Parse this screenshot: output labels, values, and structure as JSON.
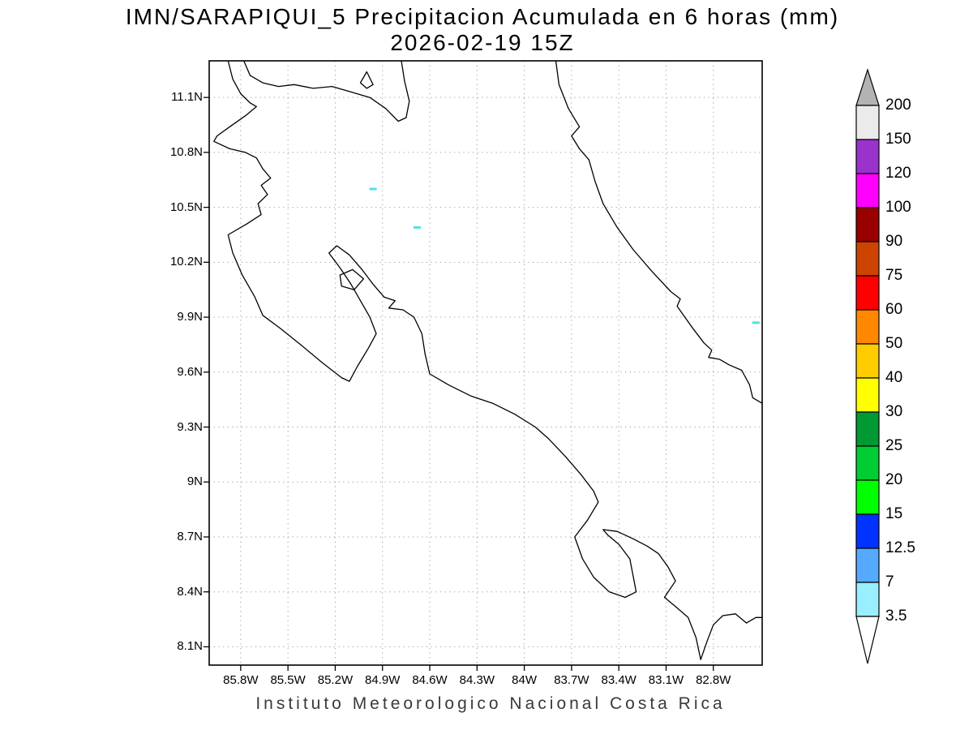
{
  "chart_data": {
    "type": "heatmap",
    "title": "IMN/SARAPIQUI_5 Precipitacion Acumulada en 6 horas (mm)",
    "subtitle": "2026-02-19 15Z",
    "caption": "Instituto Meteorologico Nacional Costa Rica",
    "units": "mm",
    "grid": true,
    "legend_position": "right",
    "lon_range_w": [
      86.0,
      82.49
    ],
    "lat_range_n": [
      8.0,
      11.3
    ],
    "x_ticks": [
      {
        "label": "85.8W",
        "lon_w": 85.8
      },
      {
        "label": "85.5W",
        "lon_w": 85.5
      },
      {
        "label": "85.2W",
        "lon_w": 85.2
      },
      {
        "label": "84.9W",
        "lon_w": 84.9
      },
      {
        "label": "84.6W",
        "lon_w": 84.6
      },
      {
        "label": "84.3W",
        "lon_w": 84.3
      },
      {
        "label": "84W",
        "lon_w": 84.0
      },
      {
        "label": "83.7W",
        "lon_w": 83.7
      },
      {
        "label": "83.4W",
        "lon_w": 83.4
      },
      {
        "label": "83.1W",
        "lon_w": 83.1
      },
      {
        "label": "82.8W",
        "lon_w": 82.8
      }
    ],
    "y_ticks": [
      {
        "label": "11.1N",
        "lat_n": 11.1
      },
      {
        "label": "10.8N",
        "lat_n": 10.8
      },
      {
        "label": "10.5N",
        "lat_n": 10.5
      },
      {
        "label": "10.2N",
        "lat_n": 10.2
      },
      {
        "label": "9.9N",
        "lat_n": 9.9
      },
      {
        "label": "9.6N",
        "lat_n": 9.6
      },
      {
        "label": "9.3N",
        "lat_n": 9.3
      },
      {
        "label": "9N",
        "lat_n": 9.0
      },
      {
        "label": "8.7N",
        "lat_n": 8.7
      },
      {
        "label": "8.4N",
        "lat_n": 8.4
      },
      {
        "label": "8.1N",
        "lat_n": 8.1
      }
    ],
    "colorbar": {
      "tick_labels_top_to_bottom": [
        "200",
        "150",
        "120",
        "100",
        "90",
        "75",
        "60",
        "50",
        "40",
        "30",
        "25",
        "20",
        "15",
        "12.5",
        "7",
        "3.5"
      ],
      "cell_colors_top_to_bottom": [
        "#ebebeb",
        "#9933cc",
        "#ff00ff",
        "#990000",
        "#cc4400",
        "#ff0000",
        "#ff8800",
        "#ffcc00",
        "#ffff00",
        "#009933",
        "#00cc33",
        "#00ff00",
        "#0033ff",
        "#55aaff",
        "#99eeff"
      ],
      "above_max_color": "#b3b3b3",
      "below_min_color": "#ffffff",
      "outline_color": "#000000"
    },
    "precip_cells": [
      {
        "lon_w": 84.96,
        "lat_n": 10.6,
        "level": "3.5-7 mm",
        "color": "#55dee6"
      },
      {
        "lon_w": 84.68,
        "lat_n": 10.39,
        "level": "3.5-7 mm",
        "color": "#55dee6"
      },
      {
        "lon_w": 82.53,
        "lat_n": 9.87,
        "level": "3.5-7 mm",
        "color": "#55dee6"
      }
    ],
    "basemap": {
      "coast_color": "#000000",
      "grid_color": "#9a9a9a",
      "coast_pacific": [
        [
          85.88,
          11.3
        ],
        [
          85.85,
          11.2
        ],
        [
          85.8,
          11.12
        ],
        [
          85.74,
          11.07
        ],
        [
          85.7,
          11.05
        ],
        [
          85.77,
          11.0
        ],
        [
          85.87,
          10.94
        ],
        [
          85.95,
          10.89
        ],
        [
          85.97,
          10.86
        ],
        [
          85.87,
          10.82
        ],
        [
          85.77,
          10.8
        ],
        [
          85.7,
          10.77
        ],
        [
          85.66,
          10.71
        ],
        [
          85.61,
          10.66
        ],
        [
          85.67,
          10.62
        ],
        [
          85.63,
          10.57
        ],
        [
          85.69,
          10.52
        ],
        [
          85.67,
          10.46
        ],
        [
          85.76,
          10.41
        ],
        [
          85.88,
          10.35
        ],
        [
          85.85,
          10.25
        ],
        [
          85.79,
          10.13
        ],
        [
          85.71,
          10.01
        ],
        [
          85.66,
          9.91
        ],
        [
          85.55,
          9.84
        ],
        [
          85.42,
          9.75
        ],
        [
          85.28,
          9.65
        ],
        [
          85.16,
          9.57
        ],
        [
          85.11,
          9.55
        ],
        [
          85.06,
          9.63
        ],
        [
          84.99,
          9.73
        ],
        [
          84.94,
          9.81
        ],
        [
          84.98,
          9.9
        ],
        [
          85.04,
          9.99
        ],
        [
          85.1,
          10.08
        ],
        [
          85.17,
          10.17
        ],
        [
          85.24,
          10.25
        ],
        [
          85.19,
          10.29
        ],
        [
          85.11,
          10.24
        ],
        [
          85.03,
          10.16
        ],
        [
          84.96,
          10.08
        ],
        [
          84.89,
          10.01
        ],
        [
          84.82,
          9.99
        ],
        [
          84.86,
          9.95
        ],
        [
          84.77,
          9.94
        ],
        [
          84.7,
          9.9
        ],
        [
          84.65,
          9.81
        ],
        [
          84.63,
          9.7
        ],
        [
          84.6,
          9.59
        ],
        [
          84.48,
          9.53
        ],
        [
          84.34,
          9.47
        ],
        [
          84.2,
          9.43
        ],
        [
          84.06,
          9.37
        ],
        [
          83.93,
          9.3
        ],
        [
          83.85,
          9.24
        ],
        [
          83.74,
          9.14
        ],
        [
          83.64,
          9.04
        ],
        [
          83.56,
          8.95
        ],
        [
          83.53,
          8.89
        ],
        [
          83.6,
          8.79
        ],
        [
          83.68,
          8.7
        ],
        [
          83.63,
          8.58
        ],
        [
          83.56,
          8.48
        ],
        [
          83.46,
          8.4
        ],
        [
          83.36,
          8.37
        ],
        [
          83.29,
          8.4
        ],
        [
          83.31,
          8.49
        ],
        [
          83.33,
          8.58
        ],
        [
          83.4,
          8.66
        ],
        [
          83.47,
          8.71
        ],
        [
          83.5,
          8.74
        ],
        [
          83.41,
          8.73
        ],
        [
          83.31,
          8.69
        ],
        [
          83.22,
          8.65
        ],
        [
          83.15,
          8.61
        ],
        [
          83.09,
          8.54
        ],
        [
          83.04,
          8.46
        ],
        [
          83.11,
          8.37
        ],
        [
          83.04,
          8.32
        ],
        [
          82.96,
          8.26
        ],
        [
          82.91,
          8.15
        ],
        [
          82.88,
          8.03
        ],
        [
          82.84,
          8.13
        ],
        [
          82.8,
          8.22
        ],
        [
          82.74,
          8.27
        ],
        [
          82.66,
          8.28
        ],
        [
          82.59,
          8.23
        ],
        [
          82.53,
          8.26
        ],
        [
          82.49,
          8.26
        ]
      ],
      "coast_caribbean": [
        [
          83.8,
          11.3
        ],
        [
          83.78,
          11.17
        ],
        [
          83.72,
          11.04
        ],
        [
          83.65,
          10.94
        ],
        [
          83.7,
          10.89
        ],
        [
          83.65,
          10.82
        ],
        [
          83.59,
          10.76
        ],
        [
          83.55,
          10.64
        ],
        [
          83.5,
          10.52
        ],
        [
          83.41,
          10.39
        ],
        [
          83.31,
          10.27
        ],
        [
          83.19,
          10.15
        ],
        [
          83.07,
          10.04
        ],
        [
          83.01,
          10.0
        ],
        [
          83.03,
          9.96
        ],
        [
          82.94,
          9.85
        ],
        [
          82.86,
          9.76
        ],
        [
          82.81,
          9.72
        ],
        [
          82.83,
          9.68
        ],
        [
          82.76,
          9.67
        ],
        [
          82.7,
          9.64
        ],
        [
          82.62,
          9.61
        ],
        [
          82.57,
          9.53
        ],
        [
          82.55,
          9.46
        ],
        [
          82.51,
          9.44
        ],
        [
          82.49,
          9.43
        ]
      ],
      "lake_nicaragua": [
        [
          85.78,
          11.3
        ],
        [
          85.74,
          11.22
        ],
        [
          85.66,
          11.18
        ],
        [
          85.56,
          11.16
        ],
        [
          85.46,
          11.17
        ],
        [
          85.34,
          11.15
        ],
        [
          85.22,
          11.16
        ],
        [
          85.1,
          11.13
        ],
        [
          84.98,
          11.1
        ],
        [
          84.88,
          11.04
        ],
        [
          84.8,
          10.97
        ],
        [
          84.75,
          10.99
        ],
        [
          84.73,
          11.08
        ],
        [
          84.76,
          11.19
        ],
        [
          84.78,
          11.3
        ]
      ],
      "islands": [
        [
          [
            85.04,
            11.18
          ],
          [
            85.0,
            11.24
          ],
          [
            84.96,
            11.17
          ],
          [
            85.0,
            11.15
          ]
        ],
        [
          [
            85.17,
            10.13
          ],
          [
            85.09,
            10.16
          ],
          [
            85.02,
            10.11
          ],
          [
            85.08,
            10.05
          ],
          [
            85.16,
            10.07
          ]
        ]
      ]
    }
  }
}
